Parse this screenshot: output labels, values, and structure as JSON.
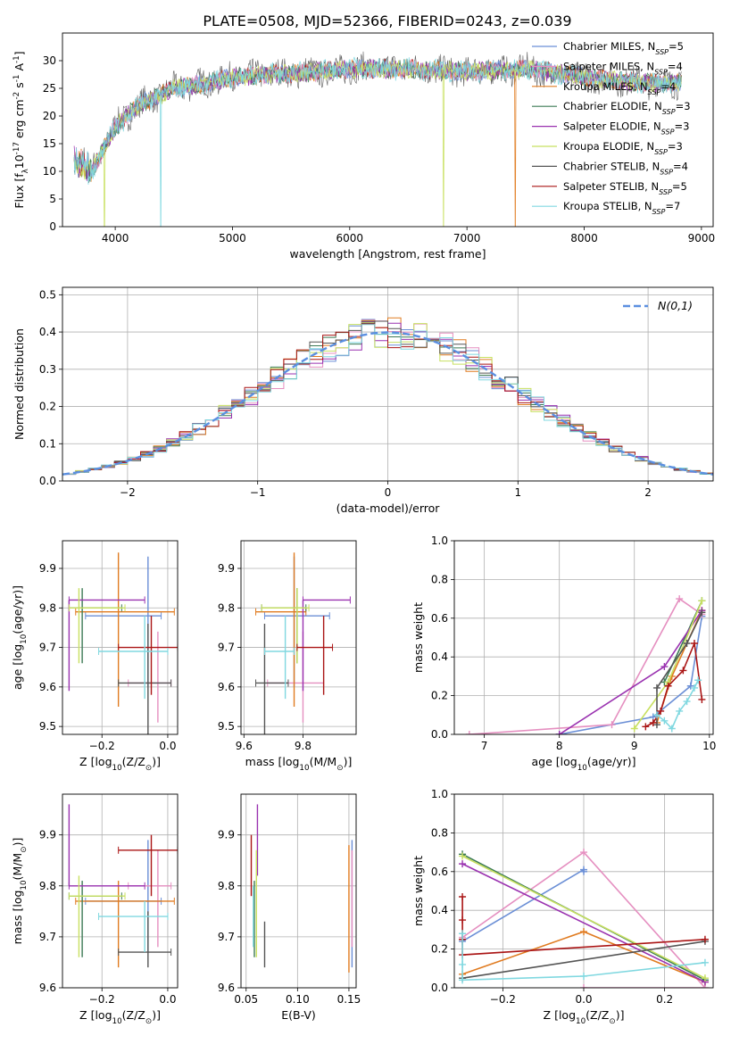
{
  "figure_title": "PLATE=0508, MJD=52366, FIBERID=0243, z=0.039",
  "colors": {
    "Chabrier MILES": "#6b8fd6",
    "Salpeter MILES": "#e58fc0",
    "Kroupa MILES": "#e07b20",
    "Chabrier ELODIE": "#3c7a55",
    "Salpeter ELODIE": "#9a32b0",
    "Kroupa ELODIE": "#c8e060",
    "Chabrier STELIB": "#555555",
    "Salpeter STELIB": "#aa1515",
    "Kroupa STELIB": "#80d8e0"
  },
  "chart_data": [
    {
      "id": "spectrum",
      "type": "line",
      "xlabel": "wavelength [Angstrom, rest frame]",
      "ylabel": "Flux [f$_\\lambda$10$^{-17}$ erg cm$^{-2}$ s$^{-1}$ A$^{-1}$]",
      "xlim": [
        3550,
        9100
      ],
      "ylim": [
        0,
        35
      ],
      "xticks": [
        4000,
        5000,
        6000,
        7000,
        8000,
        9000
      ],
      "yticks": [
        0,
        5,
        10,
        15,
        20,
        25,
        30
      ],
      "x_range": [
        3650,
        8830
      ],
      "shape": [
        [
          3650,
          12
        ],
        [
          3800,
          10
        ],
        [
          3900,
          14
        ],
        [
          4000,
          18
        ],
        [
          4200,
          22
        ],
        [
          4500,
          25
        ],
        [
          4800,
          26
        ],
        [
          5000,
          27
        ],
        [
          5300,
          27.5
        ],
        [
          5600,
          27.8
        ],
        [
          6000,
          28.5
        ],
        [
          6500,
          28.5
        ],
        [
          7000,
          28
        ],
        [
          7500,
          28.5
        ],
        [
          8000,
          27
        ],
        [
          8500,
          26
        ],
        [
          8830,
          26
        ]
      ],
      "dips": [
        {
          "series": "Kroupa ELODIE",
          "x": 3910
        },
        {
          "series": "Kroupa STELIB",
          "x": 4390
        },
        {
          "series": "Kroupa ELODIE",
          "x": 6800
        },
        {
          "series": "Kroupa MILES",
          "x": 7410
        }
      ],
      "series": [
        {
          "name": "Chabrier MILES, N$_{SSP}$=5"
        },
        {
          "name": "Salpeter MILES, N$_{SSP}$=4"
        },
        {
          "name": "Kroupa MILES, N$_{SSP}$=4"
        },
        {
          "name": "Chabrier ELODIE, N$_{SSP}$=3"
        },
        {
          "name": "Salpeter ELODIE, N$_{SSP}$=3"
        },
        {
          "name": "Kroupa ELODIE, N$_{SSP}$=3"
        },
        {
          "name": "Chabrier STELIB, N$_{SSP}$=4"
        },
        {
          "name": "Salpeter STELIB, N$_{SSP}$=5"
        },
        {
          "name": "Kroupa STELIB, N$_{SSP}$=7"
        }
      ],
      "legend_position": "upper right"
    },
    {
      "id": "residuals",
      "type": "histogram",
      "xlabel": "(data-model)/error",
      "ylabel": "Normed distribution",
      "xlim": [
        -2.5,
        2.5
      ],
      "ylim": [
        0,
        0.52
      ],
      "xticks": [
        -2,
        -1,
        0,
        1,
        2
      ],
      "yticks": [
        0.0,
        0.1,
        0.2,
        0.3,
        0.4,
        0.5
      ],
      "bin_width": 0.1,
      "series_names": [
        "Chabrier MILES",
        "Salpeter MILES",
        "Kroupa MILES",
        "Chabrier ELODIE",
        "Salpeter ELODIE",
        "Kroupa ELODIE",
        "Chabrier STELIB",
        "Salpeter STELIB",
        "Kroupa STELIB"
      ],
      "reference_curve": {
        "name": "$\\mathcal{N}(0,1)$",
        "mean": 0,
        "sigma": 1,
        "style": "dashed"
      },
      "grid": true,
      "legend_position": "upper right"
    },
    {
      "id": "age_vs_Z",
      "type": "errorbar",
      "xlabel": "Z [log$_{10}$(Z/Z$_\\odot$)]",
      "ylabel": "age  [log$_{10}$(age/yr)]",
      "xlim": [
        -0.32,
        0.03
      ],
      "ylim": [
        9.48,
        9.97
      ],
      "xticks": [
        -0.2,
        0.0
      ],
      "yticks": [
        9.5,
        9.6,
        9.7,
        9.8,
        9.9
      ],
      "points": [
        {
          "series": "Chabrier MILES",
          "x": -0.06,
          "y": 9.78,
          "xerr": [
            0.19,
            0.04
          ],
          "yerr": [
            0.18,
            0.15
          ]
        },
        {
          "series": "Salpeter MILES",
          "x": -0.03,
          "y": 9.61,
          "xerr": [
            0.09,
            0.04
          ],
          "yerr": [
            0.1,
            0.13
          ]
        },
        {
          "series": "Kroupa MILES",
          "x": -0.15,
          "y": 9.79,
          "xerr": [
            0.13,
            0.17
          ],
          "yerr": [
            0.24,
            0.15
          ]
        },
        {
          "series": "Chabrier ELODIE",
          "x": -0.26,
          "y": 9.8,
          "xerr": [
            0.04,
            0.12
          ],
          "yerr": [
            0.14,
            0.05
          ]
        },
        {
          "series": "Salpeter ELODIE",
          "x": -0.3,
          "y": 9.82,
          "xerr": [
            0.0,
            0.23
          ],
          "yerr": [
            0.23,
            0.0
          ]
        },
        {
          "series": "Kroupa ELODIE",
          "x": -0.27,
          "y": 9.8,
          "xerr": [
            0.03,
            0.14
          ],
          "yerr": [
            0.14,
            0.05
          ]
        },
        {
          "series": "Chabrier STELIB",
          "x": -0.06,
          "y": 9.61,
          "xerr": [
            0.09,
            0.07
          ],
          "yerr": [
            0.14,
            0.15
          ]
        },
        {
          "series": "Salpeter STELIB",
          "x": -0.05,
          "y": 9.7,
          "xerr": [
            0.1,
            0.08
          ],
          "yerr": [
            0.12,
            0.08
          ]
        },
        {
          "series": "Kroupa STELIB",
          "x": -0.07,
          "y": 9.69,
          "xerr": [
            0.14,
            0.07
          ],
          "yerr": [
            0.12,
            0.09
          ]
        }
      ],
      "grid": true
    },
    {
      "id": "age_vs_mass",
      "type": "errorbar",
      "xlabel": "mass [log$_{10}$(M/M$_\\odot$)]",
      "ylabel": "",
      "xlim": [
        9.59,
        9.98
      ],
      "ylim": [
        9.48,
        9.97
      ],
      "xticks": [
        9.6,
        9.8
      ],
      "yticks": [
        9.5,
        9.6,
        9.7,
        9.8,
        9.9
      ],
      "points": [
        {
          "series": "Chabrier MILES",
          "x": 9.77,
          "y": 9.78,
          "xerr": [
            0.1,
            0.12
          ],
          "yerr": [
            0.18,
            0.15
          ]
        },
        {
          "series": "Salpeter MILES",
          "x": 9.8,
          "y": 9.61,
          "xerr": [
            0.12,
            0.07
          ],
          "yerr": [
            0.1,
            0.13
          ]
        },
        {
          "series": "Kroupa MILES",
          "x": 9.77,
          "y": 9.79,
          "xerr": [
            0.13,
            0.04
          ],
          "yerr": [
            0.24,
            0.15
          ]
        },
        {
          "series": "Chabrier ELODIE",
          "x": 9.78,
          "y": 9.8,
          "xerr": [
            0.12,
            0.03
          ],
          "yerr": [
            0.14,
            0.05
          ]
        },
        {
          "series": "Salpeter ELODIE",
          "x": 9.8,
          "y": 9.82,
          "xerr": [
            0.0,
            0.16
          ],
          "yerr": [
            0.23,
            0.0
          ]
        },
        {
          "series": "Kroupa ELODIE",
          "x": 9.78,
          "y": 9.8,
          "xerr": [
            0.12,
            0.04
          ],
          "yerr": [
            0.14,
            0.05
          ]
        },
        {
          "series": "Chabrier STELIB",
          "x": 9.67,
          "y": 9.61,
          "xerr": [
            0.03,
            0.08
          ],
          "yerr": [
            0.14,
            0.15
          ]
        },
        {
          "series": "Salpeter STELIB",
          "x": 9.87,
          "y": 9.7,
          "xerr": [
            0.09,
            0.03
          ],
          "yerr": [
            0.12,
            0.08
          ]
        },
        {
          "series": "Kroupa STELIB",
          "x": 9.74,
          "y": 9.69,
          "xerr": [
            0.07,
            0.03
          ],
          "yerr": [
            0.12,
            0.09
          ]
        }
      ],
      "grid": true
    },
    {
      "id": "weight_vs_age",
      "type": "line",
      "xlabel": "age  [log$_{10}$(age/yr)]",
      "ylabel": "mass weight",
      "xlim": [
        6.6,
        10.05
      ],
      "ylim": [
        0,
        1.0
      ],
      "xticks": [
        7,
        8,
        9,
        10
      ],
      "yticks": [
        0.0,
        0.2,
        0.4,
        0.6,
        0.8,
        1.0
      ],
      "series": [
        {
          "name": "Chabrier MILES",
          "x": [
            8.0,
            9.25,
            9.75,
            9.9
          ],
          "y": [
            0.0,
            0.09,
            0.25,
            0.61
          ]
        },
        {
          "name": "Salpeter MILES",
          "x": [
            6.8,
            8.7,
            9.6,
            9.9
          ],
          "y": [
            0.0,
            0.05,
            0.7,
            0.62
          ]
        },
        {
          "name": "Kroupa MILES",
          "x": [
            9.3,
            9.5,
            9.9
          ],
          "y": [
            0.06,
            0.3,
            0.64
          ]
        },
        {
          "name": "Chabrier ELODIE",
          "x": [
            9.4,
            9.9
          ],
          "y": [
            0.27,
            0.69
          ]
        },
        {
          "name": "Salpeter ELODIE",
          "x": [
            8.0,
            9.4,
            9.9
          ],
          "y": [
            0.0,
            0.35,
            0.64
          ]
        },
        {
          "name": "Kroupa ELODIE",
          "x": [
            9.0,
            9.45,
            9.9
          ],
          "y": [
            0.03,
            0.27,
            0.69
          ]
        },
        {
          "name": "Chabrier STELIB",
          "x": [
            9.3,
            9.3,
            9.7,
            9.9
          ],
          "y": [
            0.05,
            0.24,
            0.47,
            0.63
          ]
        },
        {
          "name": "Salpeter STELIB",
          "x": [
            9.15,
            9.25,
            9.35,
            9.45,
            9.65,
            9.8,
            9.9
          ],
          "y": [
            0.04,
            0.06,
            0.12,
            0.25,
            0.33,
            0.47,
            0.18
          ]
        },
        {
          "name": "Kroupa STELIB",
          "x": [
            9.3,
            9.4,
            9.5,
            9.6,
            9.7,
            9.8,
            9.85
          ],
          "y": [
            0.1,
            0.07,
            0.03,
            0.12,
            0.17,
            0.24,
            0.28
          ]
        }
      ],
      "grid": true
    },
    {
      "id": "mass_vs_Z",
      "type": "errorbar",
      "xlabel": "Z [log$_{10}$(Z/Z$_\\odot$)]",
      "ylabel": "mass [log$_{10}$(M/M$_\\odot$)]",
      "xlim": [
        -0.32,
        0.03
      ],
      "ylim": [
        9.6,
        9.98
      ],
      "xticks": [
        -0.2,
        0.0
      ],
      "yticks": [
        9.6,
        9.7,
        9.8,
        9.9
      ],
      "points": [
        {
          "series": "Chabrier MILES",
          "x": -0.06,
          "y": 9.77,
          "xerr": [
            0.19,
            0.04
          ],
          "yerr": [
            0.1,
            0.12
          ]
        },
        {
          "series": "Salpeter MILES",
          "x": -0.03,
          "y": 9.8,
          "xerr": [
            0.09,
            0.04
          ],
          "yerr": [
            0.12,
            0.07
          ]
        },
        {
          "series": "Kroupa MILES",
          "x": -0.15,
          "y": 9.77,
          "xerr": [
            0.13,
            0.17
          ],
          "yerr": [
            0.13,
            0.04
          ]
        },
        {
          "series": "Chabrier ELODIE",
          "x": -0.26,
          "y": 9.78,
          "xerr": [
            0.04,
            0.12
          ],
          "yerr": [
            0.12,
            0.03
          ]
        },
        {
          "series": "Salpeter ELODIE",
          "x": -0.3,
          "y": 9.8,
          "xerr": [
            0.0,
            0.23
          ],
          "yerr": [
            0.0,
            0.16
          ]
        },
        {
          "series": "Kroupa ELODIE",
          "x": -0.27,
          "y": 9.78,
          "xerr": [
            0.03,
            0.14
          ],
          "yerr": [
            0.12,
            0.04
          ]
        },
        {
          "series": "Chabrier STELIB",
          "x": -0.06,
          "y": 9.67,
          "xerr": [
            0.09,
            0.07
          ],
          "yerr": [
            0.03,
            0.08
          ]
        },
        {
          "series": "Salpeter STELIB",
          "x": -0.05,
          "y": 9.87,
          "xerr": [
            0.1,
            0.08
          ],
          "yerr": [
            0.09,
            0.03
          ]
        },
        {
          "series": "Kroupa STELIB",
          "x": -0.07,
          "y": 9.74,
          "xerr": [
            0.14,
            0.07
          ],
          "yerr": [
            0.07,
            0.03
          ]
        }
      ],
      "grid": true
    },
    {
      "id": "mass_vs_ebv",
      "type": "errorbar",
      "xlabel": "E(B-V)",
      "ylabel": "",
      "xlim": [
        0.045,
        0.157
      ],
      "ylim": [
        9.6,
        9.98
      ],
      "xticks": [
        0.05,
        0.1,
        0.15
      ],
      "yticks": [
        9.6,
        9.7,
        9.8,
        9.9
      ],
      "points": [
        {
          "series": "Chabrier MILES",
          "x": 0.153,
          "y": 9.77,
          "xerr": [
            0,
            0
          ],
          "yerr": [
            0.13,
            0.12
          ]
        },
        {
          "series": "Salpeter MILES",
          "x": 0.153,
          "y": 9.8,
          "xerr": [
            0,
            0
          ],
          "yerr": [
            0.12,
            0.07
          ]
        },
        {
          "series": "Kroupa MILES",
          "x": 0.15,
          "y": 9.77,
          "xerr": [
            0,
            0
          ],
          "yerr": [
            0.14,
            0.11
          ]
        },
        {
          "series": "Chabrier ELODIE",
          "x": 0.058,
          "y": 9.78,
          "xerr": [
            0,
            0
          ],
          "yerr": [
            0.12,
            0.03
          ]
        },
        {
          "series": "Salpeter ELODIE",
          "x": 0.061,
          "y": 9.87,
          "xerr": [
            0,
            0
          ],
          "yerr": [
            0.05,
            0.09
          ]
        },
        {
          "series": "Kroupa ELODIE",
          "x": 0.06,
          "y": 9.78,
          "xerr": [
            0,
            0
          ],
          "yerr": [
            0.12,
            0.09
          ]
        },
        {
          "series": "Chabrier STELIB",
          "x": 0.068,
          "y": 9.68,
          "xerr": [
            0,
            0
          ],
          "yerr": [
            0.04,
            0.05
          ]
        },
        {
          "series": "Salpeter STELIB",
          "x": 0.055,
          "y": 9.85,
          "xerr": [
            0,
            0
          ],
          "yerr": [
            0.07,
            0.05
          ]
        },
        {
          "series": "Kroupa STELIB",
          "x": 0.057,
          "y": 9.73,
          "xerr": [
            0,
            0
          ],
          "yerr": [
            0.05,
            0.07
          ]
        }
      ],
      "grid": true
    },
    {
      "id": "weight_vs_Z",
      "type": "line",
      "xlabel": "Z [log$_{10}$(Z/Z$_\\odot$)]",
      "ylabel": "mass weight",
      "xlim": [
        -0.32,
        0.32
      ],
      "ylim": [
        0,
        1.0
      ],
      "xticks": [
        -0.2,
        0.0,
        0.2
      ],
      "yticks": [
        0.0,
        0.2,
        0.4,
        0.6,
        0.8,
        1.0
      ],
      "series": [
        {
          "name": "Chabrier MILES",
          "x": [
            -0.3,
            0.0,
            0.0
          ],
          "y": [
            0.24,
            0.61,
            0.6
          ]
        },
        {
          "name": "Salpeter MILES",
          "x": [
            -0.3,
            0.0,
            0.3,
            0.0
          ],
          "y": [
            0.26,
            0.7,
            0.0,
            0.0
          ]
        },
        {
          "name": "Kroupa MILES",
          "x": [
            -0.3,
            0.0,
            0.3
          ],
          "y": [
            0.07,
            0.29,
            0.03
          ]
        },
        {
          "name": "Chabrier ELODIE",
          "x": [
            -0.3,
            0.3
          ],
          "y": [
            0.69,
            0.04
          ]
        },
        {
          "name": "Salpeter ELODIE",
          "x": [
            -0.3,
            0.3
          ],
          "y": [
            0.64,
            0.03
          ]
        },
        {
          "name": "Kroupa ELODIE",
          "x": [
            -0.3,
            0.3
          ],
          "y": [
            0.68,
            0.05
          ]
        },
        {
          "name": "Chabrier STELIB",
          "x": [
            -0.3,
            0.3
          ],
          "y": [
            0.05,
            0.24
          ]
        },
        {
          "name": "Salpeter STELIB",
          "x": [
            -0.3,
            -0.3,
            -0.3,
            -0.3,
            0.3
          ],
          "y": [
            0.47,
            0.35,
            0.25,
            0.17,
            0.25
          ]
        },
        {
          "name": "Kroupa STELIB",
          "x": [
            -0.3,
            -0.3,
            -0.3,
            0.0,
            0.3
          ],
          "y": [
            0.28,
            0.12,
            0.04,
            0.06,
            0.13
          ]
        }
      ],
      "grid": true
    }
  ]
}
